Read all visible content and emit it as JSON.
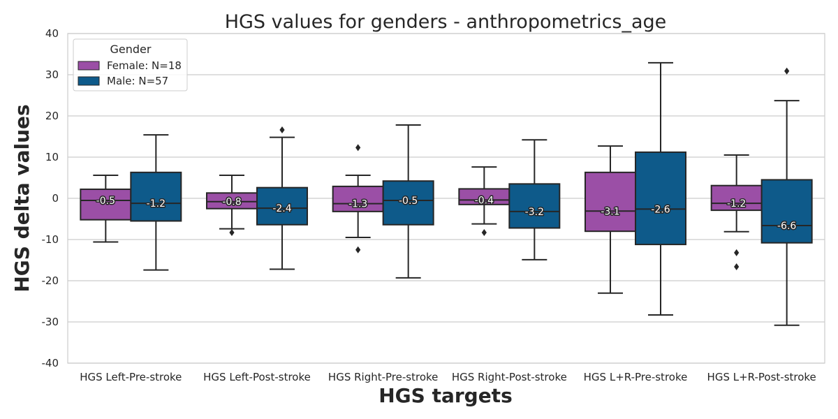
{
  "chart_data": {
    "type": "box",
    "title": "HGS values for genders - anthropometrics_age",
    "xlabel": "HGS targets",
    "ylabel": "HGS delta values",
    "ylim": [
      -40,
      40
    ],
    "yticks": [
      -40,
      -30,
      -20,
      -10,
      0,
      10,
      20,
      30,
      40
    ],
    "grid": true,
    "legend": {
      "title": "Gender",
      "placement": "top-left",
      "entries": [
        "Female: N=18",
        "Male: N=57"
      ]
    },
    "categories": [
      "HGS Left-Pre-stroke",
      "HGS Left-Post-stroke",
      "HGS Right-Pre-stroke",
      "HGS Right-Post-stroke",
      "HGS L+R-Pre-stroke",
      "HGS L+R-Post-stroke"
    ],
    "series": [
      {
        "name": "Female: N=18",
        "color": "#9b4fa6",
        "boxes": [
          {
            "whisker_low": -10.6,
            "q1": -5.2,
            "median": -0.5,
            "q3": 2.2,
            "whisker_high": 5.6,
            "outliers": []
          },
          {
            "whisker_low": -7.4,
            "q1": -2.5,
            "median": -0.8,
            "q3": 1.3,
            "whisker_high": 5.6,
            "outliers": [
              -8.3
            ]
          },
          {
            "whisker_low": -9.5,
            "q1": -3.2,
            "median": -1.3,
            "q3": 2.9,
            "whisker_high": 5.6,
            "outliers": [
              12.3,
              -12.5
            ]
          },
          {
            "whisker_low": -6.2,
            "q1": -1.5,
            "median": -0.4,
            "q3": 2.3,
            "whisker_high": 7.6,
            "outliers": [
              -8.3
            ]
          },
          {
            "whisker_low": -23.0,
            "q1": -8.0,
            "median": -3.1,
            "q3": 6.3,
            "whisker_high": 12.7,
            "outliers": []
          },
          {
            "whisker_low": -8.1,
            "q1": -2.9,
            "median": -1.2,
            "q3": 3.1,
            "whisker_high": 10.5,
            "outliers": [
              -13.2,
              -16.6
            ]
          }
        ],
        "median_labels": [
          "-0.5",
          "-0.8",
          "-1.3",
          "-0.4",
          "-3.1",
          "-1.2"
        ]
      },
      {
        "name": "Male: N=57",
        "color": "#0e5a8a",
        "boxes": [
          {
            "whisker_low": -17.4,
            "q1": -5.5,
            "median": -1.2,
            "q3": 6.3,
            "whisker_high": 15.4,
            "outliers": []
          },
          {
            "whisker_low": -17.2,
            "q1": -6.4,
            "median": -2.4,
            "q3": 2.6,
            "whisker_high": 14.8,
            "outliers": [
              16.6
            ]
          },
          {
            "whisker_low": -19.3,
            "q1": -6.4,
            "median": -0.5,
            "q3": 4.2,
            "whisker_high": 17.8,
            "outliers": []
          },
          {
            "whisker_low": -14.9,
            "q1": -7.2,
            "median": -3.2,
            "q3": 3.5,
            "whisker_high": 14.2,
            "outliers": []
          },
          {
            "whisker_low": -28.3,
            "q1": -11.2,
            "median": -2.6,
            "q3": 11.2,
            "whisker_high": 32.9,
            "outliers": []
          },
          {
            "whisker_low": -30.8,
            "q1": -10.8,
            "median": -6.6,
            "q3": 4.5,
            "whisker_high": 23.7,
            "outliers": [
              30.9
            ]
          }
        ],
        "median_labels": [
          "-1.2",
          "-2.4",
          "-0.5",
          "-3.2",
          "-2.6",
          "-6.6"
        ]
      }
    ]
  }
}
